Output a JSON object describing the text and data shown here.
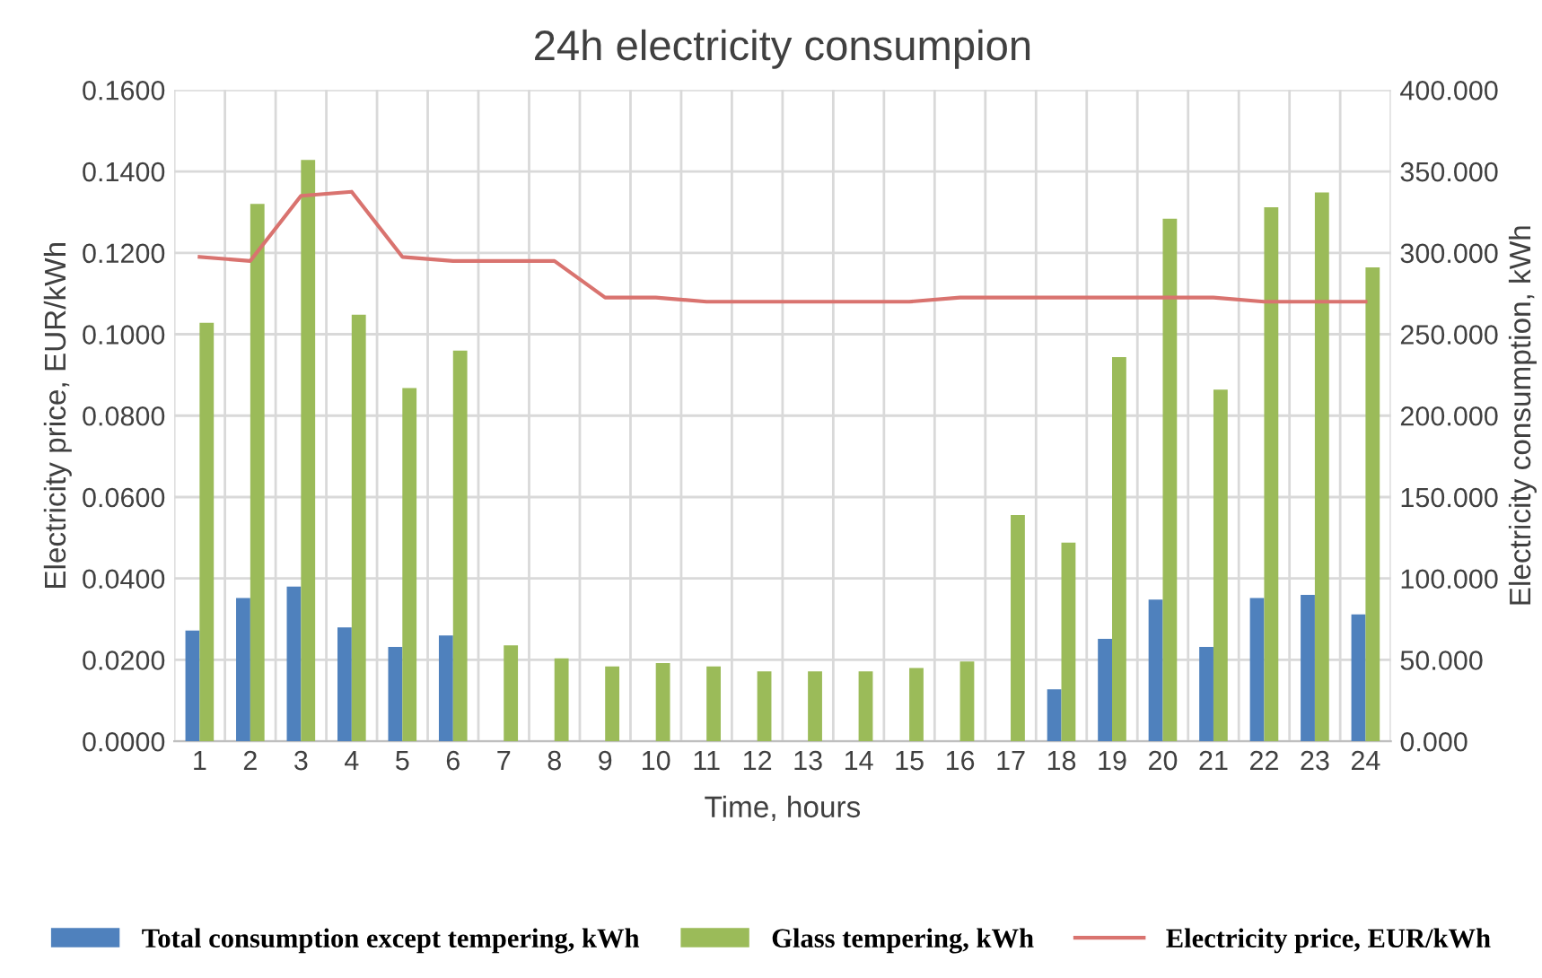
{
  "chart_data": {
    "type": "bar",
    "title": "24h electricity consumpion",
    "xlabel": "Time, hours",
    "ylabel": "Electricity price, EUR/kWh",
    "y2label": "Electricity consumption, kWh",
    "categories": [
      "1",
      "2",
      "3",
      "4",
      "5",
      "6",
      "7",
      "8",
      "9",
      "10",
      "11",
      "12",
      "13",
      "14",
      "15",
      "16",
      "17",
      "18",
      "19",
      "20",
      "21",
      "22",
      "23",
      "24"
    ],
    "series": [
      {
        "name": "Total consumption except tempering, kWh",
        "axis": "y2",
        "color": "#4f81bd",
        "values": [
          68,
          88,
          95,
          70,
          58,
          65,
          null,
          null,
          null,
          null,
          null,
          null,
          null,
          null,
          null,
          null,
          null,
          32,
          63,
          87,
          58,
          88,
          90,
          78
        ]
      },
      {
        "name": "Glass tempering, kWh",
        "axis": "y2",
        "color": "#9bbb59",
        "values": [
          257,
          330,
          357,
          262,
          217,
          240,
          59,
          51,
          46,
          48,
          46,
          43,
          43,
          43,
          45,
          49,
          139,
          122,
          236,
          321,
          216,
          328,
          337,
          291
        ]
      },
      {
        "name": "Electricity price, EUR/kWh",
        "type": "line",
        "axis": "y",
        "color": "#d9736f",
        "values": [
          0.119,
          0.118,
          0.134,
          0.135,
          0.119,
          0.118,
          0.118,
          0.118,
          0.109,
          0.109,
          0.108,
          0.108,
          0.108,
          0.108,
          0.108,
          0.109,
          0.109,
          0.109,
          0.109,
          0.109,
          0.109,
          0.108,
          0.108,
          0.108
        ]
      }
    ],
    "ylim": [
      0,
      0.16
    ],
    "yticks": [
      {
        "value": 0,
        "label": "0.0000"
      },
      {
        "value": 0.02,
        "label": "0.0200"
      },
      {
        "value": 0.04,
        "label": "0.0400"
      },
      {
        "value": 0.06,
        "label": "0.0600"
      },
      {
        "value": 0.08,
        "label": "0.0800"
      },
      {
        "value": 0.1,
        "label": "0.1000"
      },
      {
        "value": 0.12,
        "label": "0.1200"
      },
      {
        "value": 0.14,
        "label": "0.1400"
      },
      {
        "value": 0.16,
        "label": "0.1600"
      }
    ],
    "y2lim": [
      0,
      400
    ],
    "y2ticks": [
      {
        "value": 0,
        "label": "0.000"
      },
      {
        "value": 50,
        "label": "50.000"
      },
      {
        "value": 100,
        "label": "100.000"
      },
      {
        "value": 150,
        "label": "150.000"
      },
      {
        "value": 200,
        "label": "200.000"
      },
      {
        "value": 250,
        "label": "250.000"
      },
      {
        "value": 300,
        "label": "300.000"
      },
      {
        "value": 350,
        "label": "350.000"
      },
      {
        "value": 400,
        "label": "400.000"
      }
    ],
    "grid": true,
    "legend": "bottom",
    "marker": "none",
    "line_style": "solid"
  }
}
